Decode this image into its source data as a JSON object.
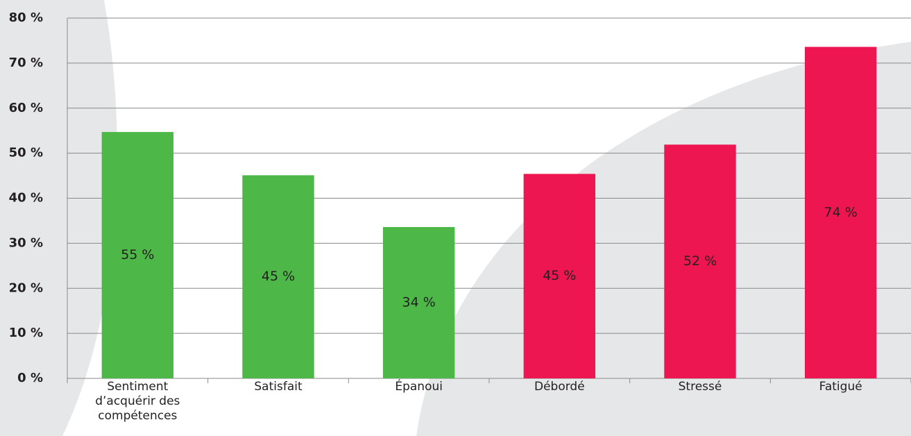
{
  "chart_data": {
    "type": "bar",
    "categories": [
      "Sentiment d’acquérir des compétences",
      "Satisfait",
      "Épanoui",
      "Débordé",
      "Stressé",
      "Fatigué"
    ],
    "values": [
      54.7,
      45.1,
      33.6,
      45.4,
      51.9,
      73.6
    ],
    "value_labels": [
      "55 %",
      "45 %",
      "34 %",
      "45 %",
      "52 %",
      "74 %"
    ],
    "colors": [
      "#4db848",
      "#4db848",
      "#4db848",
      "#ee1651",
      "#ee1651",
      "#ee1651"
    ],
    "ylim": [
      0,
      80
    ],
    "yticks": [
      {
        "value": 0,
        "label": "0 %"
      },
      {
        "value": 10,
        "label": "10 %"
      },
      {
        "value": 20,
        "label": "20 %"
      },
      {
        "value": 30,
        "label": "30 %"
      },
      {
        "value": 40,
        "label": "40 %"
      },
      {
        "value": 50,
        "label": "50 %"
      },
      {
        "value": 60,
        "label": "60 %"
      },
      {
        "value": 70,
        "label": "70 %"
      },
      {
        "value": 80,
        "label": "80 %"
      }
    ],
    "grid": true
  }
}
